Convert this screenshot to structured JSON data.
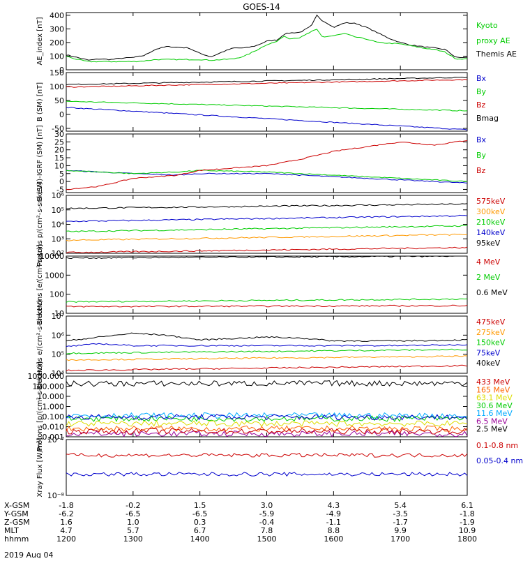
{
  "title": "GOES-14",
  "date_label": "2019 Aug 04",
  "chart_data": [
    {
      "type": "line",
      "ylabel": "AE_index [nT]",
      "ylim": [
        0,
        420
      ],
      "yticks": [
        "0",
        "100",
        "200",
        "300",
        "400"
      ],
      "legend": [
        {
          "text": "Kyoto proxy AE",
          "lines": [
            "Kyoto",
            "proxy AE"
          ],
          "color": "#00cc00"
        },
        {
          "text": "Themis AE",
          "lines": [
            "Themis AE"
          ],
          "color": "#000000"
        }
      ],
      "series": [
        {
          "name": "Themis AE",
          "color": "#000000",
          "x": [
            1200,
            1210,
            1220,
            1230,
            1240,
            1250,
            1300,
            1310,
            1320,
            1330,
            1340,
            1350,
            1400,
            1410,
            1420,
            1430,
            1440,
            1450,
            1500,
            1510,
            1515,
            1520,
            1530,
            1540,
            1545,
            1550,
            1555,
            1600,
            1610,
            1620,
            1630,
            1640,
            1650,
            1700,
            1710,
            1720,
            1730,
            1740,
            1750,
            1800
          ],
          "y": [
            110,
            90,
            70,
            80,
            75,
            85,
            90,
            105,
            150,
            170,
            165,
            160,
            120,
            95,
            130,
            160,
            160,
            175,
            210,
            220,
            260,
            270,
            275,
            320,
            400,
            360,
            340,
            310,
            345,
            340,
            310,
            270,
            230,
            200,
            180,
            170,
            160,
            150,
            90,
            90
          ]
        },
        {
          "name": "Kyoto proxy AE",
          "color": "#00cc00",
          "x": [
            1200,
            1210,
            1220,
            1230,
            1240,
            1250,
            1300,
            1310,
            1320,
            1330,
            1340,
            1350,
            1400,
            1410,
            1420,
            1430,
            1440,
            1450,
            1500,
            1510,
            1515,
            1520,
            1530,
            1540,
            1545,
            1550,
            1555,
            1600,
            1610,
            1620,
            1630,
            1640,
            1650,
            1700,
            1710,
            1720,
            1730,
            1740,
            1750,
            1800
          ],
          "y": [
            100,
            75,
            60,
            60,
            60,
            60,
            60,
            65,
            75,
            75,
            75,
            75,
            75,
            70,
            75,
            80,
            100,
            140,
            185,
            210,
            250,
            230,
            235,
            280,
            295,
            240,
            245,
            250,
            265,
            240,
            225,
            200,
            195,
            190,
            175,
            160,
            150,
            130,
            80,
            80
          ]
        }
      ]
    },
    {
      "type": "line",
      "ylabel": "B (SM) [nT]",
      "ylim": [
        -60,
        150
      ],
      "yticks": [
        "-50",
        "0",
        "50",
        "100",
        "150"
      ],
      "legend": [
        {
          "text": "Bx",
          "color": "#0000cc"
        },
        {
          "text": "By",
          "color": "#00cc00"
        },
        {
          "text": "Bz",
          "color": "#cc0000"
        },
        {
          "text": "Bmag",
          "color": "#000000"
        }
      ],
      "series": [
        {
          "name": "Bx",
          "color": "#0000cc",
          "x": [
            1200,
            1800
          ],
          "y": [
            25,
            -55
          ]
        },
        {
          "name": "By",
          "color": "#00cc00",
          "x": [
            1200,
            1800
          ],
          "y": [
            47,
            13
          ]
        },
        {
          "name": "Bz",
          "color": "#cc0000",
          "x": [
            1200,
            1800
          ],
          "y": [
            98,
            125
          ]
        },
        {
          "name": "Bmag",
          "color": "#000000",
          "x": [
            1200,
            1800
          ],
          "y": [
            107,
            133
          ]
        }
      ]
    },
    {
      "type": "line",
      "ylabel": "B (SM)-IGRF (SM) [nT]",
      "ylim": [
        -7,
        30
      ],
      "yticks": [
        "-5",
        "0",
        "5",
        "10",
        "15",
        "20",
        "25",
        "30"
      ],
      "legend": [
        {
          "text": "Bx",
          "color": "#0000cc"
        },
        {
          "text": "By",
          "color": "#00cc00"
        },
        {
          "text": "Bz",
          "color": "#cc0000"
        }
      ],
      "series": [
        {
          "name": "Bx",
          "color": "#0000cc",
          "x": [
            1200,
            1230,
            1300,
            1340,
            1400,
            1500,
            1600,
            1700,
            1800
          ],
          "y": [
            7,
            6,
            5,
            4,
            5,
            5,
            3,
            1,
            -1
          ]
        },
        {
          "name": "By",
          "color": "#00cc00",
          "x": [
            1200,
            1230,
            1300,
            1340,
            1400,
            1500,
            1600,
            1700,
            1800
          ],
          "y": [
            7,
            6,
            5,
            6,
            7,
            6,
            4,
            2,
            0
          ]
        },
        {
          "name": "Bz",
          "color": "#cc0000",
          "x": [
            1200,
            1230,
            1300,
            1340,
            1400,
            1500,
            1530,
            1600,
            1700,
            1730,
            1800
          ],
          "y": [
            -5,
            -3,
            2,
            4,
            7,
            10,
            14,
            19,
            25,
            23,
            26
          ]
        }
      ]
    },
    {
      "type": "line",
      "ylabel": "Protons p/(cm²-s-sr-keV)",
      "yscale": "log",
      "ylim": [
        2,
        6
      ],
      "yticks": [
        "10²",
        "10³",
        "10⁴",
        "10⁵",
        "10⁶"
      ],
      "legend": [
        {
          "text": "575keV",
          "color": "#cc0000"
        },
        {
          "text": "300keV",
          "color": "#ff9900"
        },
        {
          "text": "210keV",
          "color": "#00cc00"
        },
        {
          "text": "140keV",
          "color": "#0000cc"
        },
        {
          "text": "95keV",
          "color": "#000000"
        }
      ],
      "series": [
        {
          "name": "95keV",
          "color": "#000000",
          "x": [
            1200,
            1800
          ],
          "y": [
            5.1,
            5.4
          ]
        },
        {
          "name": "140keV",
          "color": "#0000cc",
          "x": [
            1200,
            1800
          ],
          "y": [
            4.2,
            4.6
          ]
        },
        {
          "name": "210keV",
          "color": "#00cc00",
          "x": [
            1200,
            1800
          ],
          "y": [
            3.5,
            3.9
          ]
        },
        {
          "name": "300keV",
          "color": "#ff9900",
          "x": [
            1200,
            1800
          ],
          "y": [
            2.9,
            3.3
          ]
        },
        {
          "name": "575keV",
          "color": "#cc0000",
          "x": [
            1200,
            1800
          ],
          "y": [
            2.05,
            2.4
          ]
        }
      ]
    },
    {
      "type": "line",
      "ylabel": "Electrons [e/(cm²-s-sr)]",
      "yscale": "log",
      "ylim": [
        1,
        4
      ],
      "yticks": [
        "10",
        "100",
        "1000",
        "10000"
      ],
      "legend": [
        {
          "text": "4 MeV",
          "color": "#cc0000"
        },
        {
          "text": "2 MeV",
          "color": "#00cc00"
        },
        {
          "text": "0.6 MeV",
          "color": "#000000"
        }
      ],
      "series": [
        {
          "name": "0.6 MeV",
          "color": "#000000",
          "x": [
            1200,
            1800
          ],
          "y": [
            3.9,
            4.0
          ]
        },
        {
          "name": "2 MeV",
          "color": "#00cc00",
          "x": [
            1200,
            1800
          ],
          "y": [
            1.6,
            1.75
          ]
        },
        {
          "name": "4 MeV",
          "color": "#cc0000",
          "x": [
            1200,
            1800
          ],
          "y": [
            1.35,
            1.4
          ]
        }
      ]
    },
    {
      "type": "line",
      "ylabel": "Electrons e/(cm²-s-sr-keV)",
      "yscale": "log",
      "ylim": [
        4,
        7
      ],
      "yticks": [
        "10⁴",
        "10⁵",
        "10⁶",
        "10⁷"
      ],
      "legend": [
        {
          "text": "475keV",
          "color": "#cc0000"
        },
        {
          "text": "275keV",
          "color": "#ff9900"
        },
        {
          "text": "150keV",
          "color": "#00cc00"
        },
        {
          "text": "75keV",
          "color": "#0000cc"
        },
        {
          "text": "40keV",
          "color": "#000000"
        }
      ],
      "series": [
        {
          "name": "40keV",
          "color": "#000000",
          "x": [
            1200,
            1230,
            1300,
            1330,
            1400,
            1500,
            1530,
            1600,
            1700,
            1800
          ],
          "y": [
            5.7,
            5.9,
            6.1,
            6.0,
            5.75,
            5.9,
            5.85,
            5.7,
            5.7,
            5.75
          ]
        },
        {
          "name": "75keV",
          "color": "#0000cc",
          "x": [
            1200,
            1230,
            1300,
            1400,
            1500,
            1600,
            1700,
            1800
          ],
          "y": [
            5.4,
            5.55,
            5.45,
            5.45,
            5.45,
            5.45,
            5.45,
            5.5
          ]
        },
        {
          "name": "150keV",
          "color": "#00cc00",
          "x": [
            1200,
            1800
          ],
          "y": [
            5.05,
            5.25
          ]
        },
        {
          "name": "275keV",
          "color": "#ff9900",
          "x": [
            1200,
            1800
          ],
          "y": [
            4.7,
            4.9
          ]
        },
        {
          "name": "475keV",
          "color": "#cc0000",
          "x": [
            1200,
            1800
          ],
          "y": [
            4.15,
            4.4
          ]
        }
      ]
    },
    {
      "type": "line",
      "ylabel": "Protons [p/(cm²-s-sr-keV)]",
      "yscale": "log",
      "ylim": [
        -3,
        3
      ],
      "yticks": [
        "0.001",
        "0.010",
        "0.100",
        "1.000",
        "10.000",
        "100.000",
        "1000.000"
      ],
      "legend": [
        {
          "text": "433 MeV",
          "color": "#cc0000"
        },
        {
          "text": "165 MeV",
          "color": "#ff6600"
        },
        {
          "text": "63.1 MeV",
          "color": "#dddd00"
        },
        {
          "text": "30.6 MeV",
          "color": "#00cc00"
        },
        {
          "text": "11.6 MeV",
          "color": "#00aaff"
        },
        {
          "text": "6.5 MeV",
          "color": "#990099"
        },
        {
          "text": "2.5 MeV",
          "color": "#000000"
        }
      ],
      "series": [
        {
          "name": "2.5 MeV",
          "color": "#000000",
          "x": [
            1200,
            1800
          ],
          "y": [
            2.25,
            2.3
          ]
        },
        {
          "name": "6.5 MeV",
          "color": "#990099",
          "x": [
            1200,
            1800
          ],
          "y": [
            -2.7,
            -2.7
          ]
        },
        {
          "name": "11.6 MeV",
          "color": "#00aaff",
          "x": [
            1200,
            1800
          ],
          "y": [
            -0.9,
            -0.9
          ]
        },
        {
          "name": "30.6 MeV",
          "color": "#00cc00",
          "x": [
            1200,
            1800
          ],
          "y": [
            -1.2,
            -1.2
          ]
        },
        {
          "name": "63.1 MeV",
          "color": "#dddd00",
          "x": [
            1200,
            1800
          ],
          "y": [
            -1.7,
            -1.7
          ]
        },
        {
          "name": "165 MeV",
          "color": "#ff6600",
          "x": [
            1200,
            1800
          ],
          "y": [
            -2.2,
            -2.2
          ]
        },
        {
          "name": "433 MeV",
          "color": "#cc0000",
          "x": [
            1200,
            1800
          ],
          "y": [
            -2.45,
            -2.45
          ]
        },
        {
          "name": "blue",
          "color": "#0000cc",
          "x": [
            1200,
            1800
          ],
          "y": [
            -1.05,
            -1.05
          ]
        }
      ]
    },
    {
      "type": "line",
      "ylabel": "Xray Flux [W/m²]",
      "yscale": "log",
      "ylim": [
        -8,
        -7
      ],
      "yticks": [
        "10⁻⁸",
        "10⁻⁷"
      ],
      "legend": [
        {
          "text": "0.1-0.8 nm",
          "color": "#cc0000"
        },
        {
          "text": "0.05-0.4 nm",
          "color": "#0000cc"
        }
      ],
      "series": [
        {
          "name": "0.1-0.8 nm",
          "color": "#cc0000",
          "x": [
            1200,
            1800
          ],
          "y": [
            -7.28,
            -7.28
          ]
        },
        {
          "name": "0.05-0.4 nm",
          "color": "#0000cc",
          "x": [
            1200,
            1800
          ],
          "y": [
            -7.62,
            -7.62
          ]
        }
      ]
    }
  ],
  "orbit": {
    "rows": [
      {
        "label": "X-GSM",
        "values": [
          "-1.8",
          "-0.2",
          "1.5",
          "3.0",
          "4.3",
          "5.4",
          "6.1"
        ]
      },
      {
        "label": "Y-GSM",
        "values": [
          "-6.2",
          "-6.5",
          "-6.5",
          "-5.9",
          "-4.9",
          "-3.5",
          "-1.8"
        ]
      },
      {
        "label": "Z-GSM",
        "values": [
          "1.6",
          "1.0",
          "0.3",
          "-0.4",
          "-1.1",
          "-1.7",
          "-1.9"
        ]
      },
      {
        "label": "MLT",
        "values": [
          "4.7",
          "5.7",
          "6.7",
          "7.8",
          "8.8",
          "9.9",
          "10.9"
        ]
      },
      {
        "label": "hhmm",
        "values": [
          "1200",
          "1300",
          "1400",
          "1500",
          "1600",
          "1700",
          "1800"
        ]
      }
    ]
  }
}
